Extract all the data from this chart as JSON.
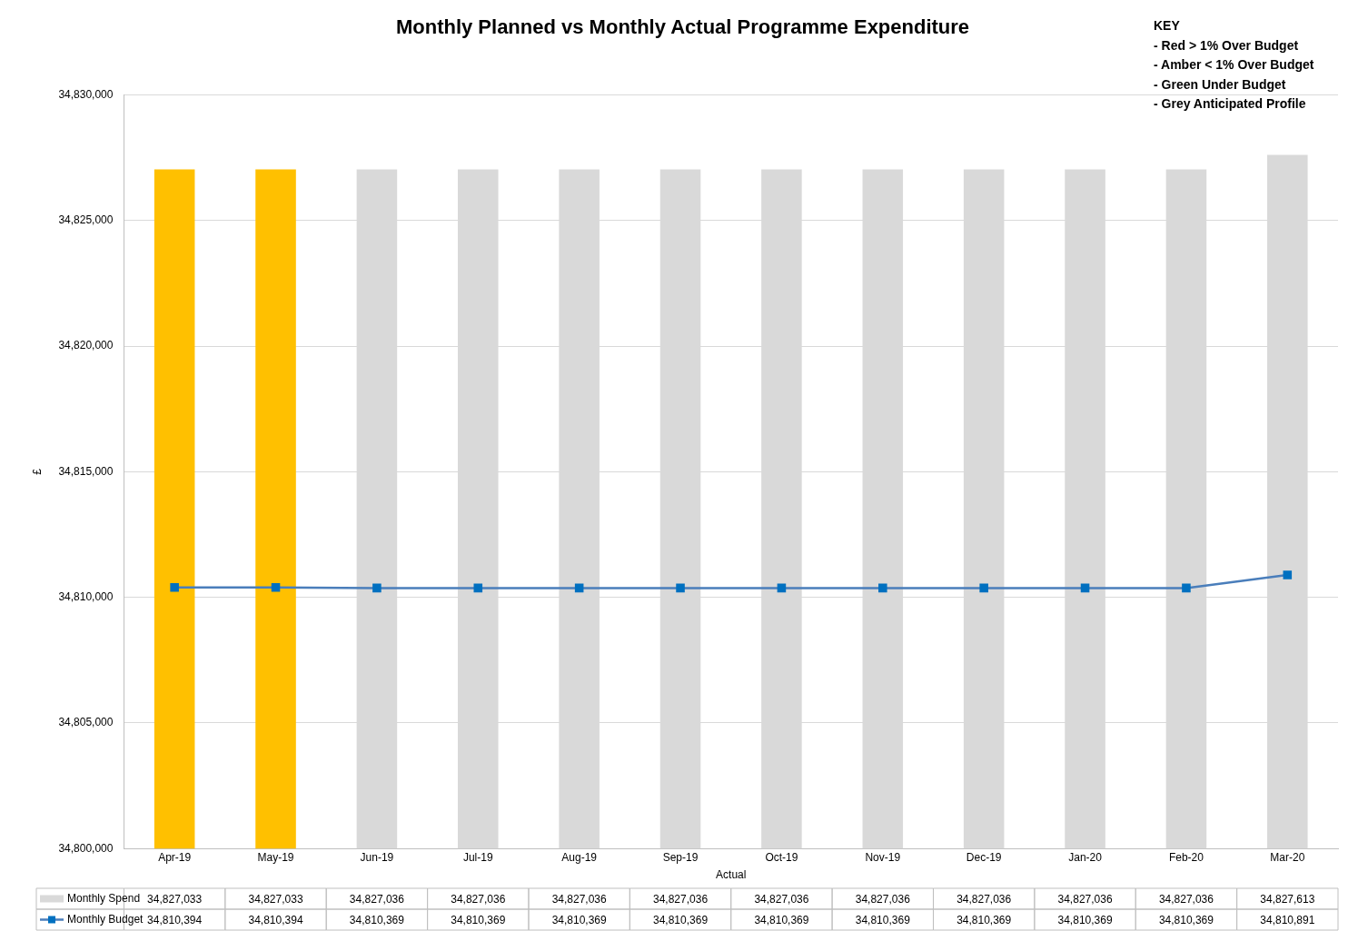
{
  "chart_data": {
    "type": "bar",
    "title": "Monthly Planned vs Monthly Actual Programme Expenditure",
    "xlabel": "Actual",
    "ylabel": "£",
    "categories": [
      "Apr-19",
      "May-19",
      "Jun-19",
      "Jul-19",
      "Aug-19",
      "Sep-19",
      "Oct-19",
      "Nov-19",
      "Dec-19",
      "Jan-20",
      "Feb-20",
      "Mar-20"
    ],
    "series": [
      {
        "name": "Monthly Spend",
        "color": "#d9d9d9",
        "colors": [
          "#ffc000",
          "#ffc000",
          "#d9d9d9",
          "#d9d9d9",
          "#d9d9d9",
          "#d9d9d9",
          "#d9d9d9",
          "#d9d9d9",
          "#d9d9d9",
          "#d9d9d9",
          "#d9d9d9",
          "#d9d9d9"
        ],
        "values": [
          34827033,
          34827033,
          34827036,
          34827036,
          34827036,
          34827036,
          34827036,
          34827036,
          34827036,
          34827036,
          34827036,
          34827613
        ],
        "value_labels": [
          "34,827,033",
          "34,827,033",
          "34,827,036",
          "34,827,036",
          "34,827,036",
          "34,827,036",
          "34,827,036",
          "34,827,036",
          "34,827,036",
          "34,827,036",
          "34,827,036",
          "34,827,613"
        ]
      },
      {
        "name": "Monthly Budget",
        "type": "line",
        "color": "#4a7ebb",
        "values": [
          34810394,
          34810394,
          34810369,
          34810369,
          34810369,
          34810369,
          34810369,
          34810369,
          34810369,
          34810369,
          34810369,
          34810891
        ],
        "value_labels": [
          "34,810,394",
          "34,810,394",
          "34,810,369",
          "34,810,369",
          "34,810,369",
          "34,810,369",
          "34,810,369",
          "34,810,369",
          "34,810,369",
          "34,810,369",
          "34,810,369",
          "34,810,891"
        ]
      }
    ],
    "ylim": [
      34800000,
      34830000
    ],
    "yticks": [
      {
        "value": 34800000,
        "label": "34,800,000"
      },
      {
        "value": 34805000,
        "label": "34,805,000"
      },
      {
        "value": 34810000,
        "label": "34,810,000"
      },
      {
        "value": 34815000,
        "label": "34,815,000"
      },
      {
        "value": 34820000,
        "label": "34,820,000"
      },
      {
        "value": 34825000,
        "label": "34,825,000"
      },
      {
        "value": 34830000,
        "label": "34,830,000"
      }
    ],
    "grid": "y",
    "legend": "bottom",
    "marker": "square",
    "line_style": "solid",
    "annotations": [
      "KEY",
      "- Red > 1% Over Budget",
      "- Amber < 1% Over Budget",
      "- Green Under Budget",
      "- Grey Anticipated Profile"
    ]
  }
}
